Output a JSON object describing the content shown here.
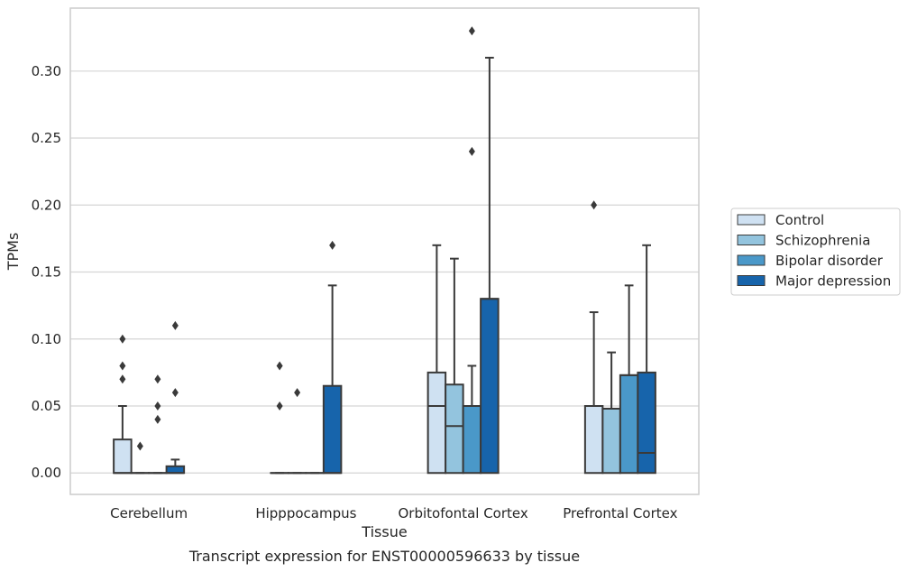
{
  "caption": "Transcript expression for ENST00000596633 by tissue",
  "chart_data": {
    "type": "box",
    "xlabel": "Tissue",
    "ylabel": "TPMs",
    "ylim": [
      -0.016,
      0.347
    ],
    "yticks": [
      0.0,
      0.05,
      0.1,
      0.15,
      0.2,
      0.25,
      0.3
    ],
    "ytick_labels": [
      "0.00",
      "0.05",
      "0.10",
      "0.15",
      "0.20",
      "0.25",
      "0.30"
    ],
    "grid": "horizontal",
    "legend_position": "right",
    "categories": [
      "Cerebellum",
      "Hipppocampus",
      "Orbitofontal Cortex",
      "Prefrontal Cortex"
    ],
    "series": [
      {
        "name": "Control",
        "color": "#cfe1f2",
        "boxes": [
          {
            "q1": 0.0,
            "median": 0.0,
            "q3": 0.025,
            "whisker_low": 0.0,
            "whisker_high": 0.05,
            "outliers": [
              0.07,
              0.08,
              0.1
            ]
          },
          {
            "q1": 0.0,
            "median": 0.0,
            "q3": 0.0,
            "whisker_low": 0.0,
            "whisker_high": 0.0,
            "outliers": [
              0.05,
              0.08
            ]
          },
          {
            "q1": 0.0,
            "median": 0.05,
            "q3": 0.075,
            "whisker_low": 0.0,
            "whisker_high": 0.17,
            "outliers": []
          },
          {
            "q1": 0.0,
            "median": 0.05,
            "q3": 0.05,
            "whisker_low": 0.0,
            "whisker_high": 0.12,
            "outliers": [
              0.2
            ]
          }
        ]
      },
      {
        "name": "Schizophrenia",
        "color": "#93c4de",
        "boxes": [
          {
            "q1": 0.0,
            "median": 0.0,
            "q3": 0.0,
            "whisker_low": 0.0,
            "whisker_high": 0.0,
            "outliers": [
              0.02
            ]
          },
          {
            "q1": 0.0,
            "median": 0.0,
            "q3": 0.0,
            "whisker_low": 0.0,
            "whisker_high": 0.0,
            "outliers": [
              0.06
            ]
          },
          {
            "q1": 0.0,
            "median": 0.035,
            "q3": 0.066,
            "whisker_low": 0.0,
            "whisker_high": 0.16,
            "outliers": []
          },
          {
            "q1": 0.0,
            "median": 0.048,
            "q3": 0.048,
            "whisker_low": 0.0,
            "whisker_high": 0.09,
            "outliers": []
          }
        ]
      },
      {
        "name": "Bipolar disorder",
        "color": "#4a98c9",
        "boxes": [
          {
            "q1": 0.0,
            "median": 0.0,
            "q3": 0.0,
            "whisker_low": 0.0,
            "whisker_high": 0.0,
            "outliers": [
              0.04,
              0.05,
              0.07
            ]
          },
          {
            "q1": 0.0,
            "median": 0.0,
            "q3": 0.0,
            "whisker_low": 0.0,
            "whisker_high": 0.0,
            "outliers": []
          },
          {
            "q1": 0.0,
            "median": 0.05,
            "q3": 0.05,
            "whisker_low": 0.0,
            "whisker_high": 0.08,
            "outliers": [
              0.24,
              0.33
            ]
          },
          {
            "q1": 0.0,
            "median": 0.073,
            "q3": 0.073,
            "whisker_low": 0.0,
            "whisker_high": 0.14,
            "outliers": []
          }
        ]
      },
      {
        "name": "Major depression",
        "color": "#1764ab",
        "boxes": [
          {
            "q1": 0.0,
            "median": 0.0,
            "q3": 0.005,
            "whisker_low": 0.0,
            "whisker_high": 0.01,
            "outliers": [
              0.06,
              0.11
            ]
          },
          {
            "q1": 0.0,
            "median": 0.0,
            "q3": 0.065,
            "whisker_low": 0.0,
            "whisker_high": 0.14,
            "outliers": [
              0.17
            ]
          },
          {
            "q1": 0.0,
            "median": 0.13,
            "q3": 0.13,
            "whisker_low": 0.0,
            "whisker_high": 0.31,
            "outliers": []
          },
          {
            "q1": 0.0,
            "median": 0.015,
            "q3": 0.075,
            "whisker_low": 0.0,
            "whisker_high": 0.17,
            "outliers": []
          }
        ]
      }
    ]
  }
}
